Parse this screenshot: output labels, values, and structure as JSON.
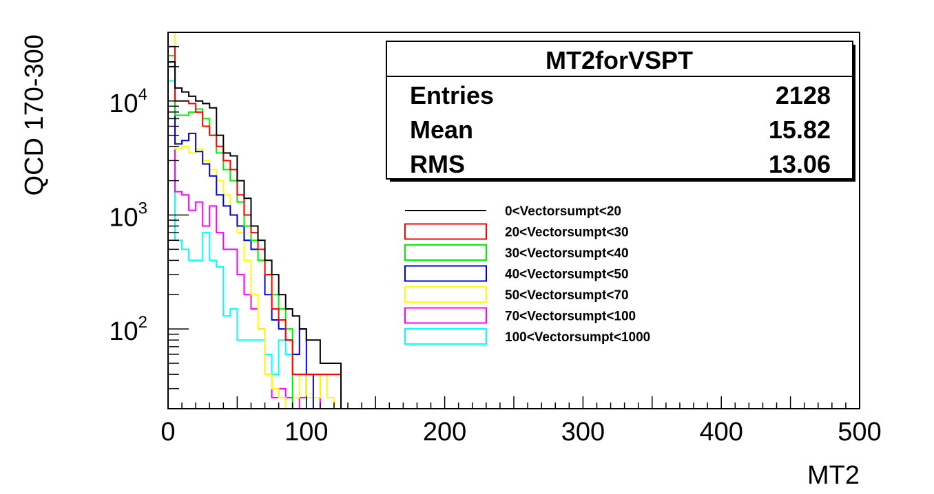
{
  "chart_data": {
    "type": "histogram",
    "xlabel": "MT2",
    "ylabel": "QCD 170-300",
    "xlim": [
      0,
      500
    ],
    "ylim": [
      20,
      40000
    ],
    "yscale": "log",
    "bin_width": 5,
    "x_ticks": [
      0,
      100,
      200,
      300,
      400,
      500
    ],
    "y_tick_labels": [
      {
        "base": "10",
        "exp": "2",
        "value": 100
      },
      {
        "base": "10",
        "exp": "3",
        "value": 1000
      },
      {
        "base": "10",
        "exp": "4",
        "value": 10000
      }
    ],
    "stats_box": {
      "title": "MT2forVSPT",
      "rows": [
        {
          "label": "Entries",
          "value": "2128"
        },
        {
          "label": "Mean",
          "value": "15.82"
        },
        {
          "label": "RMS",
          "value": "13.06"
        }
      ]
    },
    "series": [
      {
        "name": "0<Vectorsumpt<20",
        "color": "#000000",
        "legend_style": "line",
        "values": [
          22000,
          13000,
          12000,
          11000,
          10000,
          9500,
          8700,
          5000,
          3500,
          3300,
          2000,
          1400,
          800,
          600,
          400,
          300,
          200,
          150,
          130,
          100,
          80,
          80,
          50,
          50,
          50
        ]
      },
      {
        "name": "20<Vectorsumpt<30",
        "color": "#ff0000",
        "legend_style": "box",
        "values": [
          30000,
          10000,
          10000,
          9500,
          8000,
          6000,
          5000,
          4000,
          3000,
          2500,
          1500,
          1000,
          700,
          500,
          300,
          150,
          120,
          80,
          40,
          40,
          40,
          40,
          40,
          40,
          40
        ]
      },
      {
        "name": "30<Vectorsumpt<40",
        "color": "#00ee00",
        "legend_style": "box",
        "values": [
          25000,
          7500,
          7500,
          8000,
          8500,
          7000,
          5000,
          3500,
          2500,
          2000,
          1300,
          800,
          600,
          400,
          300,
          200,
          150,
          100
        ]
      },
      {
        "name": "40<Vectorsumpt<50",
        "color": "#0000dd",
        "legend_style": "box",
        "values": [
          20000,
          4200,
          4500,
          5200,
          3600,
          2800,
          2200,
          1500,
          1200,
          1000,
          800,
          600,
          500,
          400,
          200,
          120,
          100,
          80,
          60,
          100,
          40
        ]
      },
      {
        "name": "50<Vectorsumpt<70",
        "color": "#ffff00",
        "legend_style": "box",
        "values": [
          40000,
          3800,
          4000,
          3500,
          3800,
          3000,
          2500,
          2000,
          1500,
          1000,
          700,
          400,
          200,
          100,
          40,
          30,
          25,
          20,
          25,
          40,
          25,
          25,
          40,
          25
        ]
      },
      {
        "name": "70<Vectorsumpt<100",
        "color": "#ff00ff",
        "legend_style": "box",
        "values": [
          20000,
          1600,
          1500,
          1100,
          1300,
          800,
          1200,
          700,
          500,
          500,
          300,
          200,
          150,
          100,
          40,
          25,
          30,
          25,
          20,
          25,
          40,
          40
        ]
      },
      {
        "name": "100<Vectorsumpt<1000",
        "color": "#00ffff",
        "legend_style": "box",
        "values": [
          15000,
          600,
          500,
          400,
          400,
          700,
          400,
          350,
          130,
          150,
          80,
          80,
          80,
          80,
          60,
          40,
          80,
          60,
          40,
          40
        ]
      }
    ]
  }
}
